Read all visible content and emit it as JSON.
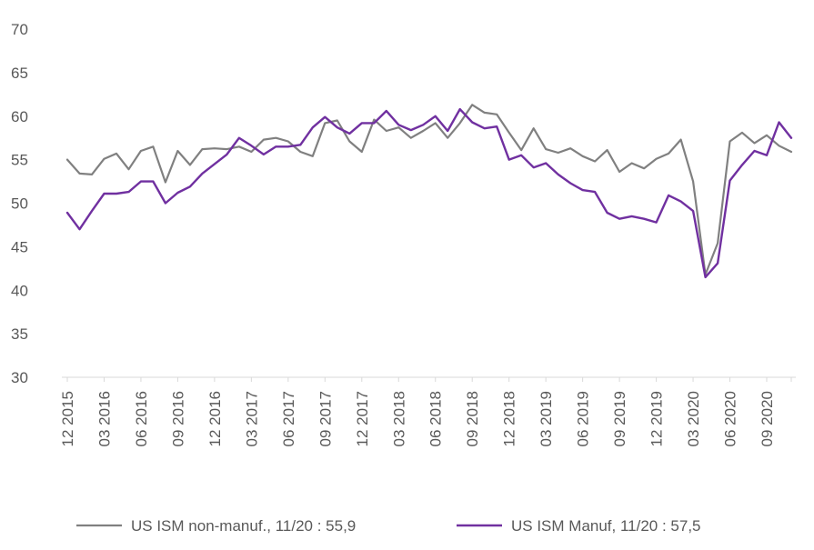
{
  "chart_data": {
    "type": "line",
    "title": "",
    "xlabel": "",
    "ylabel": "",
    "ylim": [
      30,
      70
    ],
    "yticks": [
      30,
      35,
      40,
      45,
      50,
      55,
      60,
      65,
      70
    ],
    "grid": false,
    "legend_position": "bottom",
    "x": [
      "12 2015",
      "01 2016",
      "02 2016",
      "03 2016",
      "04 2016",
      "05 2016",
      "06 2016",
      "07 2016",
      "08 2016",
      "09 2016",
      "10 2016",
      "11 2016",
      "12 2016",
      "01 2017",
      "02 2017",
      "03 2017",
      "04 2017",
      "05 2017",
      "06 2017",
      "07 2017",
      "08 2017",
      "09 2017",
      "10 2017",
      "11 2017",
      "12 2017",
      "01 2018",
      "02 2018",
      "03 2018",
      "04 2018",
      "05 2018",
      "06 2018",
      "07 2018",
      "08 2018",
      "09 2018",
      "10 2018",
      "11 2018",
      "12 2018",
      "01 2019",
      "02 2019",
      "03 2019",
      "04 2019",
      "05 2019",
      "06 2019",
      "07 2019",
      "08 2019",
      "09 2019",
      "10 2019",
      "11 2019",
      "12 2019",
      "01 2020",
      "02 2020",
      "03 2020",
      "04 2020",
      "05 2020",
      "06 2020",
      "07 2020",
      "08 2020",
      "09 2020",
      "10 2020",
      "11 2020"
    ],
    "x_tick_labels": [
      "12 2015",
      "03 2016",
      "06 2016",
      "09 2016",
      "12 2016",
      "03 2017",
      "06 2017",
      "09 2017",
      "12 2017",
      "03 2018",
      "06 2018",
      "09 2018",
      "12 2018",
      "03 2019",
      "06 2019",
      "09 2019",
      "12 2019",
      "03 2020",
      "06 2020",
      "09 2020"
    ],
    "series": [
      {
        "name": "US ISM non-manuf., 11/20 : 55,9",
        "color": "#808080",
        "values": [
          55.0,
          53.4,
          53.3,
          55.1,
          55.7,
          53.9,
          56.0,
          56.5,
          52.4,
          56.0,
          54.4,
          56.2,
          56.3,
          56.2,
          56.5,
          55.9,
          57.3,
          57.5,
          57.1,
          55.9,
          55.4,
          59.2,
          59.5,
          57.1,
          55.9,
          59.6,
          58.3,
          58.7,
          57.5,
          58.3,
          59.2,
          57.5,
          59.2,
          61.3,
          60.4,
          60.2,
          58.1,
          56.1,
          58.6,
          56.2,
          55.8,
          56.3,
          55.4,
          54.8,
          56.1,
          53.6,
          54.6,
          54.0,
          55.1,
          55.7,
          57.3,
          52.5,
          41.8,
          45.4,
          57.1,
          58.1,
          56.9,
          57.8,
          56.6,
          55.9
        ]
      },
      {
        "name": "US ISM Manuf, 11/20 : 57,5",
        "color": "#7030a0",
        "values": [
          48.9,
          47.0,
          49.1,
          51.1,
          51.1,
          51.3,
          52.5,
          52.5,
          50.0,
          51.2,
          51.9,
          53.4,
          54.5,
          55.6,
          57.5,
          56.6,
          55.6,
          56.5,
          56.5,
          56.7,
          58.7,
          59.9,
          58.7,
          58.0,
          59.2,
          59.2,
          60.6,
          59.0,
          58.4,
          59.0,
          60.0,
          58.3,
          60.8,
          59.3,
          58.6,
          58.8,
          55.0,
          55.5,
          54.1,
          54.6,
          53.3,
          52.3,
          51.5,
          51.3,
          48.9,
          48.2,
          48.5,
          48.2,
          47.8,
          50.9,
          50.2,
          49.1,
          41.5,
          43.1,
          52.6,
          54.4,
          56.0,
          55.5,
          59.3,
          57.5
        ]
      }
    ]
  }
}
